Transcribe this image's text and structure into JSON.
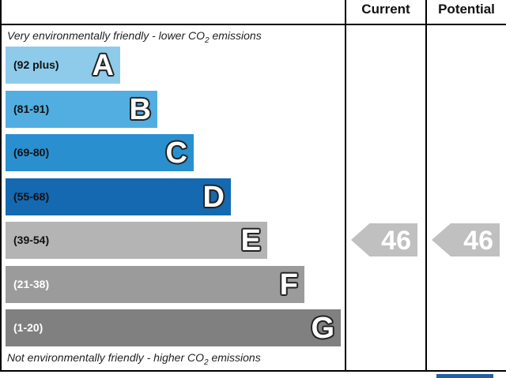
{
  "header": {
    "current_label": "Current",
    "potential_label": "Potential"
  },
  "captions": {
    "top_text": "Very environmentally friendly - lower C",
    "top_o": "O",
    "top_sub": "2",
    "top_end": " emissions",
    "bottom_text": "Not environmentally friendly - higher C",
    "bottom_o": "O",
    "bottom_sub": "2",
    "bottom_end": " emissions"
  },
  "chart_data": {
    "type": "bar",
    "title": "",
    "xlabel": "",
    "ylabel": "",
    "categories": [
      "A",
      "B",
      "C",
      "D",
      "E",
      "F",
      "G"
    ],
    "ranges": [
      "(92 plus)",
      "(81-91)",
      "(69-80)",
      "(55-68)",
      "(39-54)",
      "(21-38)",
      "(1-20)"
    ],
    "series": [
      {
        "values": [
          1,
          2,
          3,
          4,
          5,
          6,
          7
        ]
      }
    ],
    "band_colors": [
      "#8ecbea",
      "#52aee0",
      "#2a8fcf",
      "#1469b1",
      "#b4b4b4",
      "#9b9b9b",
      "#808080"
    ],
    "range_text_colors": [
      "#111111",
      "#111111",
      "#111111",
      "#111111",
      "#111111",
      "#ffffff",
      "#ffffff"
    ],
    "current": {
      "value": 46,
      "band": "E",
      "color": "#c0c0c0"
    },
    "potential": {
      "value": 46,
      "band": "E",
      "color": "#c0c0c0"
    }
  }
}
